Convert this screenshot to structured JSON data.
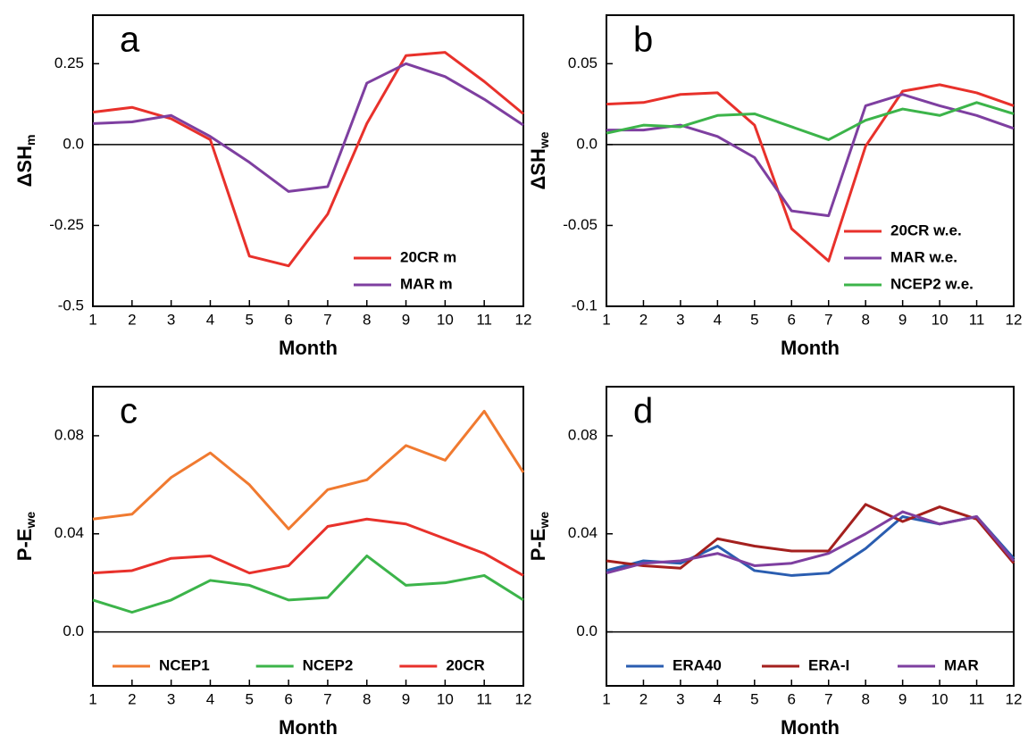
{
  "chart_data": [
    {
      "type": "line",
      "panel_label": "a",
      "x_label": "Month",
      "y_label": "ΔSH",
      "y_label_subscript": "m",
      "x": [
        1,
        2,
        3,
        4,
        5,
        6,
        7,
        8,
        9,
        10,
        11,
        12
      ],
      "xlim": [
        1,
        12
      ],
      "xticks": [
        1,
        2,
        3,
        4,
        5,
        6,
        7,
        8,
        9,
        10,
        11,
        12
      ],
      "ylim": [
        -0.5,
        0.4
      ],
      "yticks": [
        -0.5,
        -0.25,
        {
          "value": 0,
          "label": "0.0"
        },
        0.25
      ],
      "zero_line": true,
      "legend": "lower right",
      "series": [
        {
          "name": "20CR m",
          "color": "#e8312b",
          "values": [
            0.1,
            0.115,
            0.08,
            0.015,
            -0.345,
            -0.375,
            -0.215,
            0.065,
            0.275,
            0.285,
            0.195,
            0.095
          ]
        },
        {
          "name": "MAR m",
          "color": "#7e3fa0",
          "values": [
            0.065,
            0.07,
            0.09,
            0.025,
            -0.055,
            -0.145,
            -0.13,
            0.19,
            0.25,
            0.21,
            0.14,
            0.06
          ]
        }
      ]
    },
    {
      "type": "line",
      "panel_label": "b",
      "x_label": "Month",
      "y_label": "ΔSH",
      "y_label_subscript": "we",
      "x": [
        1,
        2,
        3,
        4,
        5,
        6,
        7,
        8,
        9,
        10,
        11,
        12
      ],
      "xlim": [
        1,
        12
      ],
      "xticks": [
        1,
        2,
        3,
        4,
        5,
        6,
        7,
        8,
        9,
        10,
        11,
        12
      ],
      "ylim": [
        -0.1,
        0.08
      ],
      "yticks": [
        -0.1,
        -0.05,
        {
          "value": 0,
          "label": "0.0"
        },
        0.05
      ],
      "zero_line": true,
      "legend": "lower right",
      "series": [
        {
          "name": "20CR w.e.",
          "color": "#e8312b",
          "values": [
            0.025,
            0.026,
            0.031,
            0.032,
            0.012,
            -0.052,
            -0.072,
            -0.001,
            0.033,
            0.037,
            0.032,
            0.024
          ]
        },
        {
          "name": "MAR w.e.",
          "color": "#7e3fa0",
          "values": [
            0.009,
            0.009,
            0.012,
            0.005,
            -0.008,
            -0.041,
            -0.044,
            0.024,
            0.031,
            0.024,
            0.018,
            0.01
          ]
        },
        {
          "name": "NCEP2 w.e.",
          "color": "#3cb44a",
          "values": [
            0.007,
            0.012,
            0.011,
            0.018,
            0.019,
            0.011,
            0.003,
            0.015,
            0.022,
            0.018,
            0.026,
            0.019
          ]
        }
      ]
    },
    {
      "type": "line",
      "panel_label": "c",
      "x_label": "Month",
      "y_label": "P-E",
      "y_label_subscript": "we",
      "x": [
        1,
        2,
        3,
        4,
        5,
        6,
        7,
        8,
        9,
        10,
        11,
        12
      ],
      "xlim": [
        1,
        12
      ],
      "xticks": [
        1,
        2,
        3,
        4,
        5,
        6,
        7,
        8,
        9,
        10,
        11,
        12
      ],
      "ylim": [
        -0.022,
        0.1
      ],
      "yticks": [
        {
          "value": 0,
          "label": "0.0"
        },
        0.04,
        0.08
      ],
      "zero_line": true,
      "legend": "lower center",
      "series": [
        {
          "name": "NCEP1",
          "color": "#f07a30",
          "values": [
            0.046,
            0.048,
            0.063,
            0.073,
            0.06,
            0.042,
            0.058,
            0.062,
            0.076,
            0.07,
            0.09,
            0.065
          ]
        },
        {
          "name": "NCEP2",
          "color": "#3cb44a",
          "values": [
            0.013,
            0.008,
            0.013,
            0.021,
            0.019,
            0.013,
            0.014,
            0.031,
            0.019,
            0.02,
            0.023,
            0.013
          ]
        },
        {
          "name": "20CR",
          "color": "#e8312b",
          "values": [
            0.024,
            0.025,
            0.03,
            0.031,
            0.024,
            0.027,
            0.043,
            0.046,
            0.044,
            0.038,
            0.032,
            0.023
          ]
        }
      ]
    },
    {
      "type": "line",
      "panel_label": "d",
      "x_label": "Month",
      "y_label": "P-E",
      "y_label_subscript": "we",
      "x": [
        1,
        2,
        3,
        4,
        5,
        6,
        7,
        8,
        9,
        10,
        11,
        12
      ],
      "xlim": [
        1,
        12
      ],
      "xticks": [
        1,
        2,
        3,
        4,
        5,
        6,
        7,
        8,
        9,
        10,
        11,
        12
      ],
      "ylim": [
        -0.022,
        0.1
      ],
      "yticks": [
        {
          "value": 0,
          "label": "0.0"
        },
        0.04,
        0.08
      ],
      "zero_line": true,
      "legend": "lower center",
      "series": [
        {
          "name": "ERA40",
          "color": "#2a5db0",
          "values": [
            0.025,
            0.029,
            0.028,
            0.035,
            0.025,
            0.023,
            0.024,
            0.034,
            0.047,
            0.044,
            0.047,
            0.03
          ]
        },
        {
          "name": "ERA-I",
          "color": "#a4201e",
          "values": [
            0.029,
            0.027,
            0.026,
            0.038,
            0.035,
            0.033,
            0.033,
            0.052,
            0.045,
            0.051,
            0.046,
            0.028
          ]
        },
        {
          "name": "MAR",
          "color": "#7e3fa0",
          "values": [
            0.024,
            0.028,
            0.029,
            0.032,
            0.027,
            0.028,
            0.032,
            0.04,
            0.049,
            0.044,
            0.047,
            0.029
          ]
        }
      ]
    }
  ]
}
